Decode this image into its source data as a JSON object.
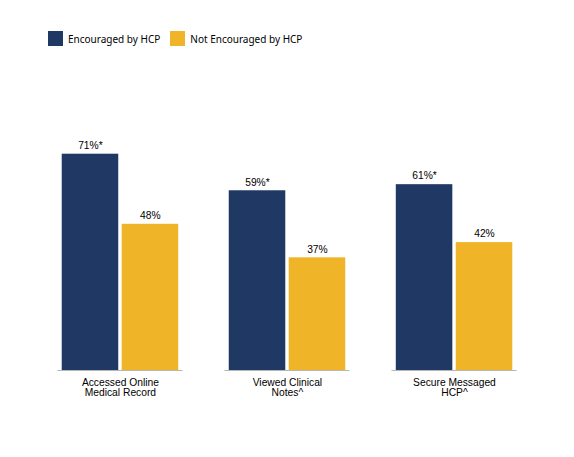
{
  "chart_data": {
    "type": "bar",
    "categories": [
      "Accessed Online\nMedical Record",
      "Viewed Clinical\nNotes^",
      "Secure Messaged\nHCP^"
    ],
    "series": [
      {
        "name": "Encouraged by HCP",
        "color": "#1F3864",
        "values": [
          71,
          59,
          61
        ],
        "value_labels": [
          "71%*",
          "59%*",
          "61%*"
        ]
      },
      {
        "name": "Not Encouraged by HCP",
        "color": "#F0B429",
        "values": [
          48,
          37,
          42
        ],
        "value_labels": [
          "48%",
          "37%",
          "42%"
        ]
      }
    ],
    "ylim": [
      0,
      95
    ],
    "grid": false,
    "legend": "upper left",
    "data_labels": true,
    "tick_labels": "x"
  }
}
